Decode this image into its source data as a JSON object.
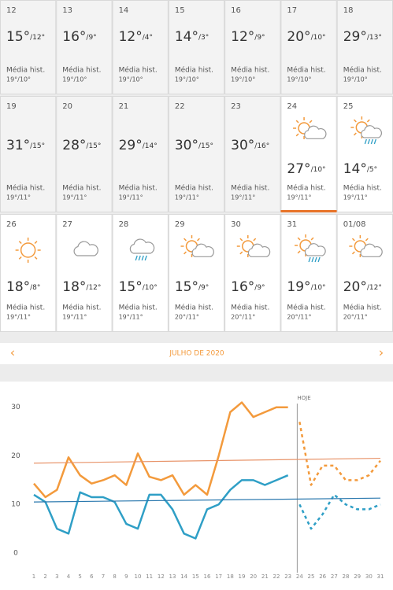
{
  "cells": [
    {
      "day": "12",
      "max": "15°",
      "min": "/12°",
      "hist_label": "Média hist.",
      "hist": "19°/10°"
    },
    {
      "day": "13",
      "max": "16°",
      "min": "/9°",
      "hist_label": "Média hist.",
      "hist": "19°/10°"
    },
    {
      "day": "14",
      "max": "12°",
      "min": "/4°",
      "hist_label": "Média hist.",
      "hist": "19°/10°"
    },
    {
      "day": "15",
      "max": "14°",
      "min": "/3°",
      "hist_label": "Média hist.",
      "hist": "19°/10°"
    },
    {
      "day": "16",
      "max": "12°",
      "min": "/9°",
      "hist_label": "Média hist.",
      "hist": "19°/10°"
    },
    {
      "day": "17",
      "max": "20°",
      "min": "/10°",
      "hist_label": "Média hist.",
      "hist": "19°/10°"
    },
    {
      "day": "18",
      "max": "29°",
      "min": "/13°",
      "hist_label": "Média hist.",
      "hist": "19°/10°"
    },
    {
      "day": "19",
      "max": "31°",
      "min": "/15°",
      "hist_label": "Média hist.",
      "hist": "19°/11°"
    },
    {
      "day": "20",
      "max": "28°",
      "min": "/15°",
      "hist_label": "Média hist.",
      "hist": "19°/11°"
    },
    {
      "day": "21",
      "max": "29°",
      "min": "/14°",
      "hist_label": "Média hist.",
      "hist": "19°/11°"
    },
    {
      "day": "22",
      "max": "30°",
      "min": "/15°",
      "hist_label": "Média hist.",
      "hist": "19°/11°"
    },
    {
      "day": "23",
      "max": "30°",
      "min": "/16°",
      "hist_label": "Média hist.",
      "hist": "19°/11°"
    },
    {
      "day": "24",
      "max": "27°",
      "min": "/10°",
      "hist_label": "Média hist.",
      "hist": "19°/11°",
      "icon": "sun-cloud",
      "today": true
    },
    {
      "day": "25",
      "max": "14°",
      "min": "/5°",
      "hist_label": "Média hist.",
      "hist": "19°/11°",
      "icon": "sun-cloud-rain"
    },
    {
      "day": "26",
      "max": "18°",
      "min": "/8°",
      "hist_label": "Média hist.",
      "hist": "19°/11°",
      "icon": "sun"
    },
    {
      "day": "27",
      "max": "18°",
      "min": "/12°",
      "hist_label": "Média hist.",
      "hist": "19°/11°",
      "icon": "cloud"
    },
    {
      "day": "28",
      "max": "15°",
      "min": "/10°",
      "hist_label": "Média hist.",
      "hist": "19°/11°",
      "icon": "rain"
    },
    {
      "day": "29",
      "max": "15°",
      "min": "/9°",
      "hist_label": "Média hist.",
      "hist": "20°/11°",
      "icon": "sun-cloud"
    },
    {
      "day": "30",
      "max": "16°",
      "min": "/9°",
      "hist_label": "Média hist.",
      "hist": "20°/11°",
      "icon": "sun-cloud"
    },
    {
      "day": "31",
      "max": "19°",
      "min": "/10°",
      "hist_label": "Média hist.",
      "hist": "20°/11°",
      "icon": "sun-cloud-rain"
    },
    {
      "day": "01/08",
      "max": "20°",
      "min": "/12°",
      "hist_label": "Média hist.",
      "hist": "20°/11°",
      "icon": "sun-cloud"
    }
  ],
  "nav": {
    "prev": "‹",
    "title": "JULHO DE 2020",
    "next": "›"
  },
  "chart_data": {
    "type": "line",
    "x": [
      1,
      2,
      3,
      4,
      5,
      6,
      7,
      8,
      9,
      10,
      11,
      12,
      13,
      14,
      15,
      16,
      17,
      18,
      19,
      20,
      21,
      22,
      23,
      24,
      25,
      26,
      27,
      28,
      29,
      30,
      31
    ],
    "xlim": [
      1,
      31
    ],
    "xticks": [
      1,
      2,
      3,
      4,
      5,
      6,
      7,
      8,
      9,
      10,
      11,
      12,
      13,
      14,
      15,
      16,
      17,
      18,
      19,
      20,
      21,
      22,
      23,
      24,
      25,
      26,
      27,
      28,
      29,
      30,
      31
    ],
    "ylim": [
      0,
      34
    ],
    "yticks": [
      0,
      10,
      20,
      30
    ],
    "today": {
      "label": "HOJE",
      "x": 23.8
    },
    "series": [
      {
        "color": "#f39a3c",
        "width": 2.5,
        "dash": false,
        "values": [
          14.3,
          11.5,
          13,
          19.7,
          16,
          14.3,
          15,
          16,
          14,
          20.5,
          15.7,
          15,
          16,
          12,
          14,
          12,
          20,
          29,
          31,
          28,
          29,
          30,
          30,
          null,
          null,
          null,
          null,
          null,
          null,
          null,
          null
        ]
      },
      {
        "color": "#f39a3c",
        "width": 2.5,
        "dash": true,
        "values": [
          null,
          null,
          null,
          null,
          null,
          null,
          null,
          null,
          null,
          null,
          null,
          null,
          null,
          null,
          null,
          null,
          null,
          null,
          null,
          null,
          null,
          null,
          null,
          27,
          14,
          18,
          18,
          15,
          15,
          16,
          19
        ]
      },
      {
        "color": "#2f9fc6",
        "width": 2.5,
        "dash": false,
        "values": [
          12,
          10.5,
          5,
          4,
          12.5,
          11.5,
          11.5,
          10.5,
          6,
          5,
          12,
          12,
          9,
          4,
          3,
          9,
          10,
          13,
          15,
          15,
          14,
          15,
          16,
          null,
          null,
          null,
          null,
          null,
          null,
          null,
          null
        ]
      },
      {
        "color": "#2f9fc6",
        "width": 2.5,
        "dash": true,
        "values": [
          null,
          null,
          null,
          null,
          null,
          null,
          null,
          null,
          null,
          null,
          null,
          null,
          null,
          null,
          null,
          null,
          null,
          null,
          null,
          null,
          null,
          null,
          null,
          10,
          5,
          8,
          12,
          10,
          9,
          9,
          10
        ]
      },
      {
        "color": "#e8946a",
        "width": 1.2,
        "dash": false,
        "x": [
          1,
          31
        ],
        "values": [
          18.5,
          19.5
        ]
      },
      {
        "color": "#2a78ae",
        "width": 1.2,
        "dash": false,
        "x": [
          1,
          31
        ],
        "values": [
          10.5,
          11.3
        ]
      }
    ]
  }
}
